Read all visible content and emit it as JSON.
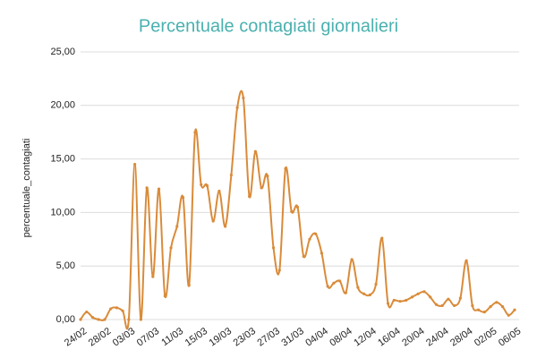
{
  "chart_data": {
    "type": "line",
    "title": "Percentuale contagiati giornalieri",
    "y_label": "percentuale_contagiati",
    "categories": [
      "24/02",
      null,
      null,
      null,
      "28/02",
      null,
      null,
      null,
      "03/03",
      null,
      null,
      null,
      "07/03",
      null,
      null,
      null,
      "11/03",
      null,
      null,
      null,
      "15/03",
      null,
      null,
      null,
      "19/03",
      null,
      null,
      null,
      "23/03",
      null,
      null,
      null,
      "27/03",
      null,
      null,
      null,
      "31/03",
      null,
      null,
      null,
      "04/04",
      null,
      null,
      null,
      "08/04",
      null,
      null,
      null,
      "12/04",
      null,
      null,
      null,
      "16/04",
      null,
      null,
      null,
      "20/04",
      null,
      null,
      null,
      "24/04",
      null,
      null,
      null,
      "28/04",
      null,
      null,
      null,
      "02/05",
      null,
      null,
      null,
      "06/05"
    ],
    "series": [
      {
        "name": "percentuale_contagiati",
        "color": "#d98b3a",
        "values": [
          0,
          0.7,
          0.2,
          0,
          0,
          1.0,
          1.1,
          0.8,
          0,
          14.5,
          0,
          12.3,
          4.0,
          12.2,
          2.2,
          6.7,
          8.7,
          11.4,
          3.2,
          17.5,
          12.6,
          12.5,
          9.2,
          12.0,
          8.7,
          13.5,
          19.8,
          20.7,
          11.5,
          15.7,
          12.3,
          13.4,
          6.7,
          4.6,
          14.1,
          10.1,
          10.5,
          5.9,
          7.5,
          8.0,
          6.2,
          3.1,
          3.4,
          3.6,
          2.5,
          5.6,
          3.0,
          2.4,
          2.3,
          3.3,
          7.6,
          1.5,
          1.8,
          1.7,
          1.8,
          2.1,
          2.4,
          2.6,
          2.1,
          1.4,
          1.3,
          1.9,
          1.3,
          2.0,
          5.5,
          1.3,
          0.9,
          0.7,
          1.2,
          1.6,
          1.2,
          0.4,
          0.9
        ]
      }
    ],
    "ylim": [
      0,
      25
    ],
    "yticks": [
      {
        "value": 0,
        "label": "0,00"
      },
      {
        "value": 5,
        "label": "5,00"
      },
      {
        "value": 10,
        "label": "10,00"
      },
      {
        "value": 15,
        "label": "15,00"
      },
      {
        "value": 20,
        "label": "20,00"
      },
      {
        "value": 25,
        "label": "25,00"
      }
    ],
    "grid": true
  }
}
